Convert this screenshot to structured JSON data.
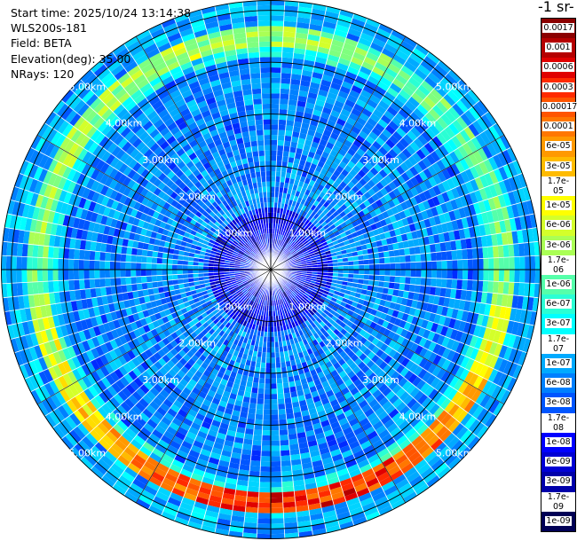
{
  "header": {
    "start_time": "Start time: 2025/10/24 13:14:38",
    "instrument": "WLS200s-181",
    "field": "Field: BETA",
    "elevation": "Elevation(deg): 35.00",
    "nrays": "NRays: 120"
  },
  "units_label": "-1 sr-",
  "chart_data": {
    "type": "heatmap",
    "projection": "polar (PPI scan)",
    "field": "BETA",
    "elevation_deg": 35.0,
    "n_rays": 120,
    "range_rings": [
      {
        "range_km": 1.0,
        "label": "1.00km"
      },
      {
        "range_km": 2.0,
        "label": "2.00km"
      },
      {
        "range_km": 3.0,
        "label": "3.00km"
      },
      {
        "range_km": 4.0,
        "label": "4.00km"
      },
      {
        "range_km": 5.0,
        "label": "5.00km"
      }
    ],
    "max_range_km": 5.2,
    "colorbar": {
      "scale": "log",
      "labels_top_to_bottom": [
        "0.0017",
        "0.001",
        "0.0006",
        "0.0003",
        "0.00017",
        "0.0001",
        "6e-05",
        "3e-05",
        "1.7e-05",
        "1e-05",
        "6e-06",
        "3e-06",
        "1.7e-06",
        "1e-06",
        "6e-07",
        "3e-07",
        "1.7e-07",
        "1e-07",
        "6e-08",
        "3e-08",
        "1.7e-08",
        "1e-08",
        "6e-09",
        "3e-09",
        "1.7e-09",
        "1e-09"
      ],
      "colors_top_to_bottom": [
        "#8b0000",
        "#b50000",
        "#e00000",
        "#ff2a00",
        "#ff5500",
        "#ff7700",
        "#ff9900",
        "#ffbb00",
        "#ffdd00",
        "#ffff00",
        "#d4ff2a",
        "#aaff55",
        "#7fff7f",
        "#55ffaa",
        "#2affd4",
        "#00ffff",
        "#00d4ff",
        "#00aaff",
        "#0080ff",
        "#0055ff",
        "#002aff",
        "#0000ff",
        "#0000d4",
        "#0000aa",
        "#00007f",
        "#000055"
      ]
    },
    "bands": [
      {
        "range_km": [
          0.0,
          1.2
        ],
        "typical_beta": "1e-08"
      },
      {
        "range_km": [
          1.2,
          4.1
        ],
        "typical_beta": "6e-08"
      },
      {
        "range_km": [
          4.1,
          4.35
        ],
        "typical_beta": "3e-07"
      },
      {
        "range_km": [
          4.35,
          4.75
        ],
        "typical_beta": "1.7e-06",
        "note": "enhanced, strongest toward the south (up to 0.0003)"
      },
      {
        "range_km": [
          4.75,
          5.2
        ],
        "typical_beta": "1e-07"
      }
    ]
  }
}
